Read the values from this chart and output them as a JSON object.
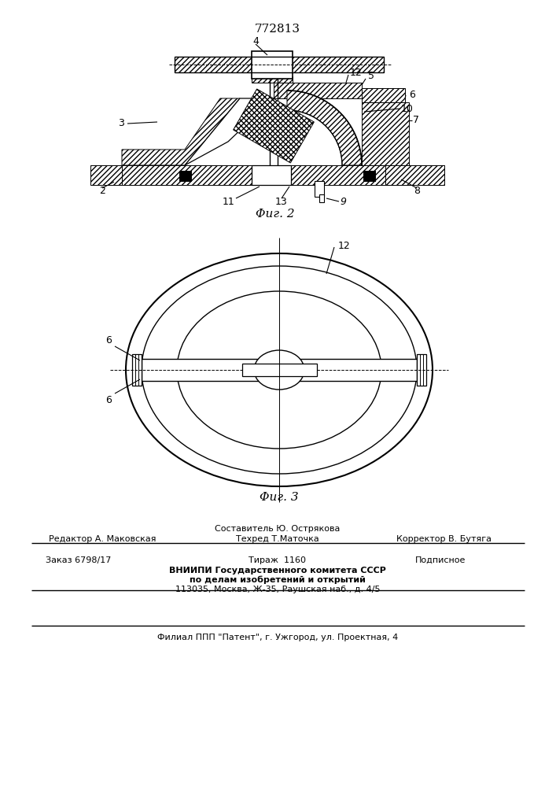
{
  "title": "772813",
  "fig2_label": "Φиг. 2",
  "fig3_label": "Φиг. 3",
  "footer_line1_left": "Редактор А. Маковская",
  "footer_line1_center": "Составитель Ю. Острякова",
  "footer_line1_right": "Корректор В. Бутяга",
  "footer_line2_center": "Техред Т.Маточка",
  "footer_block1": "Заказ 6798/17",
  "footer_block2": "Тираж  1160",
  "footer_block3": "Подписное",
  "footer_vniipи": "ВНИИПИ Государственного комитета СССР",
  "footer_po": "по делам изобретений и открытий",
  "footer_address": "113035, Москва, Ж-35, Раушская наб., д. 4/5",
  "footer_filial": "Филиал ППП \"Патент\", г. Ужгород, ул. Проектная, 4",
  "bg_color": "#ffffff",
  "line_color": "#000000"
}
